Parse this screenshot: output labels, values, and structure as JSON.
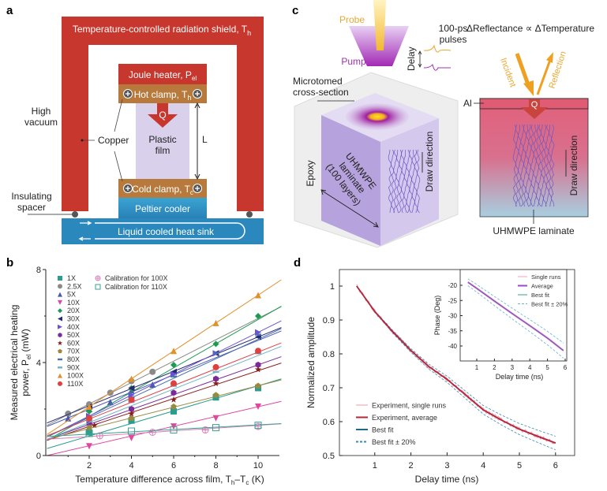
{
  "panel_labels": {
    "a": "a",
    "b": "b",
    "c": "c",
    "d": "d"
  },
  "panel_a": {
    "shield": "Temperature-controlled radiation shield, T",
    "shield_sub": "h",
    "joule": "Joule heater, P",
    "joule_sub": "el",
    "hot_clamp": "Hot clamp, T",
    "hot_sub": "h",
    "cold_clamp": "Cold clamp, T",
    "cold_sub": "c",
    "q": "Q",
    "film_1": "Plastic",
    "film_2": "film",
    "length": "L",
    "vacuum_1": "High",
    "vacuum_2": "vacuum",
    "copper": "Copper",
    "spacer_1": "Insulating",
    "spacer_2": "spacer",
    "peltier": "Peltier cooler",
    "sink": "Liquid cooled heat sink",
    "colors": {
      "shield": "#c8372d",
      "clamp": "#b87a3c",
      "film": "#d9d1ec",
      "peltier": "#3196c6",
      "sink": "#2a88bd"
    }
  },
  "panel_c": {
    "probe": "Probe",
    "pump": "Pump",
    "pulses_1": "100-ps",
    "pulses_2": "pulses",
    "delay": "Delay",
    "micro_1": "Microtomed",
    "micro_2": "cross-section",
    "epoxy": "Epoxy",
    "laminate_1": "UHMWPE",
    "laminate_2": "laminate",
    "laminate_3": "(100 layers)",
    "draw_dir": "Draw direction",
    "relation": "ΔReflectance ∝  ΔTemperature",
    "incident": "Incident",
    "reflection": "Reflection",
    "al": "Al",
    "q": "Q",
    "draw_dir_2": "Draw direction",
    "laminate_label": "UHMWPE laminate"
  },
  "chart_data": [
    {
      "id": "b",
      "type": "scatter",
      "xlabel": "Temperature difference across film, T",
      "xlabel_sub1": "h",
      "xlabel_mid": "–T",
      "xlabel_sub2": "c",
      "xlabel_unit": " (K)",
      "ylabel_1": "Measured electrical heating",
      "ylabel_2": "power, P",
      "ylabel_sub": "el",
      "ylabel_unit": " (mW)",
      "xlim": [
        0,
        11.1
      ],
      "ylim": [
        0,
        8
      ],
      "xticks": [
        "2",
        "4",
        "6",
        "8",
        "10"
      ],
      "yticks": [
        "0",
        "4",
        "8"
      ],
      "legend_position": "top-left",
      "series": [
        {
          "name": "1X",
          "color": "#2a9d8f",
          "marker": "square",
          "x": [
            2,
            4,
            6,
            8,
            10
          ],
          "y": [
            1.0,
            1.5,
            1.9,
            2.5,
            2.9
          ],
          "fit": [
            0.27,
            0.3
          ]
        },
        {
          "name": "2.5X",
          "color": "#8a8a8a",
          "marker": "circle",
          "x": [
            1,
            2,
            3,
            4,
            5
          ],
          "y": [
            1.8,
            2.2,
            2.7,
            3.2,
            3.6
          ],
          "fit": [
            0.46,
            1.3
          ]
        },
        {
          "name": "5X",
          "color": "#4a58b0",
          "marker": "triangle-up",
          "x": [
            1,
            2,
            3,
            4,
            5
          ],
          "y": [
            1.6,
            2.0,
            2.3,
            2.8,
            3.05
          ],
          "fit": [
            0.37,
            1.25
          ]
        },
        {
          "name": "10X",
          "color": "#e0479e",
          "marker": "triangle-down",
          "x": [
            2,
            4,
            6,
            8,
            10
          ],
          "y": [
            0.4,
            0.75,
            1.25,
            1.6,
            2.1
          ],
          "fit": [
            0.21,
            0.0
          ]
        },
        {
          "name": "20X",
          "color": "#1c9a50",
          "marker": "diamond",
          "x": [
            2,
            4,
            6,
            8,
            10
          ],
          "y": [
            1.9,
            2.9,
            3.9,
            4.8,
            6.0
          ],
          "fit": [
            0.52,
            0.65
          ]
        },
        {
          "name": "30X",
          "color": "#262870",
          "marker": "triangle-left",
          "x": [
            2,
            4,
            6,
            8,
            10
          ],
          "y": [
            2.1,
            2.9,
            3.6,
            4.4,
            5.1
          ],
          "fit": [
            0.37,
            1.4
          ]
        },
        {
          "name": "40X",
          "color": "#6a52d4",
          "marker": "triangle-right",
          "x": [
            2,
            4,
            6,
            8,
            10
          ],
          "y": [
            1.7,
            2.6,
            3.5,
            4.4,
            5.3
          ],
          "fit": [
            0.45,
            0.8
          ]
        },
        {
          "name": "50X",
          "color": "#7a2a9a",
          "marker": "hexagon",
          "x": [
            2,
            4,
            6,
            8,
            10
          ],
          "y": [
            1.4,
            2.0,
            2.7,
            3.3,
            3.9
          ],
          "fit": [
            0.32,
            0.7
          ]
        },
        {
          "name": "60X",
          "color": "#8a1e1e",
          "marker": "star",
          "x": [
            2.25,
            4,
            6,
            8,
            10
          ],
          "y": [
            1.3,
            1.8,
            2.4,
            3.1,
            3.7
          ],
          "fit": [
            0.3,
            0.65
          ]
        },
        {
          "name": "70X",
          "color": "#9a8a40",
          "marker": "pentagon",
          "x": [
            2,
            4,
            6,
            8,
            10
          ],
          "y": [
            1.2,
            1.6,
            2.1,
            2.6,
            3.0
          ],
          "fit": [
            0.23,
            0.7
          ]
        },
        {
          "name": "80X",
          "color": "#4a70b0",
          "marker": "dash",
          "x": [
            2,
            4,
            6,
            8,
            10
          ],
          "y": [
            1.6,
            2.5,
            3.4,
            4.4,
            5.2
          ],
          "fit": [
            0.42,
            0.8
          ]
        },
        {
          "name": "90X",
          "color": "#6fb3c4",
          "marker": "dash",
          "x": [
            2,
            4,
            6,
            8,
            10
          ],
          "y": [
            1.5,
            2.3,
            3.0,
            3.6,
            4.4
          ],
          "fit": [
            0.36,
            0.7
          ]
        },
        {
          "name": "100X",
          "color": "#e0902c",
          "marker": "triangle-up",
          "x": [
            2,
            4,
            6,
            8,
            10
          ],
          "y": [
            2.1,
            3.3,
            4.5,
            5.7,
            6.9
          ],
          "fit": [
            0.6,
            0.9
          ]
        },
        {
          "name": "110X",
          "color": "#e04040",
          "marker": "circle",
          "x": [
            2,
            4,
            6,
            8,
            10
          ],
          "y": [
            1.6,
            2.4,
            3.1,
            3.8,
            4.5
          ],
          "fit": [
            0.36,
            0.85
          ]
        },
        {
          "name": "Calibration for 100X",
          "color": "#d880b8",
          "marker": "circle-plus",
          "x": [
            2.5,
            5,
            7.5,
            10
          ],
          "y": [
            0.85,
            1.0,
            1.1,
            1.25
          ],
          "fit": [
            0.06,
            0.7
          ]
        },
        {
          "name": "Calibration for 110X",
          "color": "#3aa090",
          "marker": "open-square",
          "x": [
            2,
            4,
            6,
            8,
            10
          ],
          "y": [
            0.95,
            1.05,
            1.1,
            1.2,
            1.3
          ],
          "fit": [
            0.05,
            0.82
          ]
        }
      ]
    },
    {
      "id": "d",
      "type": "line",
      "xlabel": "Delay time (ns)",
      "ylabel": "Normalized amplitude",
      "xlim": [
        0,
        6.5
      ],
      "ylim": [
        0.5,
        1.05
      ],
      "xticks": [
        "1",
        "2",
        "3",
        "4",
        "5",
        "6"
      ],
      "yticks": [
        "0.5",
        "0.6",
        "0.7",
        "0.8",
        "0.9",
        "1"
      ],
      "legend_position": "bottom-left",
      "x": [
        0.5,
        1,
        1.5,
        2,
        2.5,
        3,
        3.5,
        4,
        4.5,
        5,
        5.5,
        6
      ],
      "series": [
        {
          "name": "Experiment, single runs",
          "color": "#f09aa8",
          "y": [
            1.0,
            0.925,
            0.865,
            0.81,
            0.762,
            0.725,
            0.68,
            0.635,
            0.605,
            0.578,
            0.557,
            0.537
          ]
        },
        {
          "name": "Experiment, average",
          "color": "#b8243a",
          "y": [
            1.0,
            0.925,
            0.865,
            0.81,
            0.762,
            0.725,
            0.68,
            0.635,
            0.605,
            0.578,
            0.557,
            0.537
          ]
        },
        {
          "name": "Best fit",
          "color": "#1a6a8a",
          "y": [
            1.0,
            0.925,
            0.865,
            0.81,
            0.762,
            0.725,
            0.68,
            0.635,
            0.605,
            0.578,
            0.557,
            0.537
          ]
        },
        {
          "name": "Best fit ± 20%",
          "color": "#3a8ab0",
          "band_percent": 20
        }
      ],
      "inset": {
        "type": "line",
        "xlabel": "Delay time (ns)",
        "ylabel": "Phase (Deg)",
        "xlim": [
          0,
          6.3
        ],
        "ylim": [
          -43,
          -16
        ],
        "xticks": [
          "1",
          "2",
          "3",
          "4",
          "5",
          "6"
        ],
        "yticks": [
          "-20",
          "-25",
          "-30",
          "-35",
          "-40"
        ],
        "legend_position": "top-right",
        "x": [
          0.5,
          1,
          2,
          3,
          4,
          5,
          5.9
        ],
        "series": [
          {
            "name": "Single runs",
            "color": "#f0a0c8",
            "y": [
              -19,
              -21,
              -25.2,
              -29.3,
              -33.3,
              -37.4,
              -41.5
            ]
          },
          {
            "name": "Average",
            "color": "#9a4ad0",
            "y": [
              -19,
              -21,
              -25.2,
              -29.3,
              -33.3,
              -37.4,
              -41.5
            ]
          },
          {
            "name": "Best fit",
            "color": "#3aa080",
            "y": [
              -19,
              -21,
              -25.2,
              -29.3,
              -33.3,
              -37.4,
              -41.5
            ]
          },
          {
            "name": "Best fit ± 20%",
            "color": "#6ab0d0",
            "band_percent": 20
          }
        ]
      }
    }
  ]
}
